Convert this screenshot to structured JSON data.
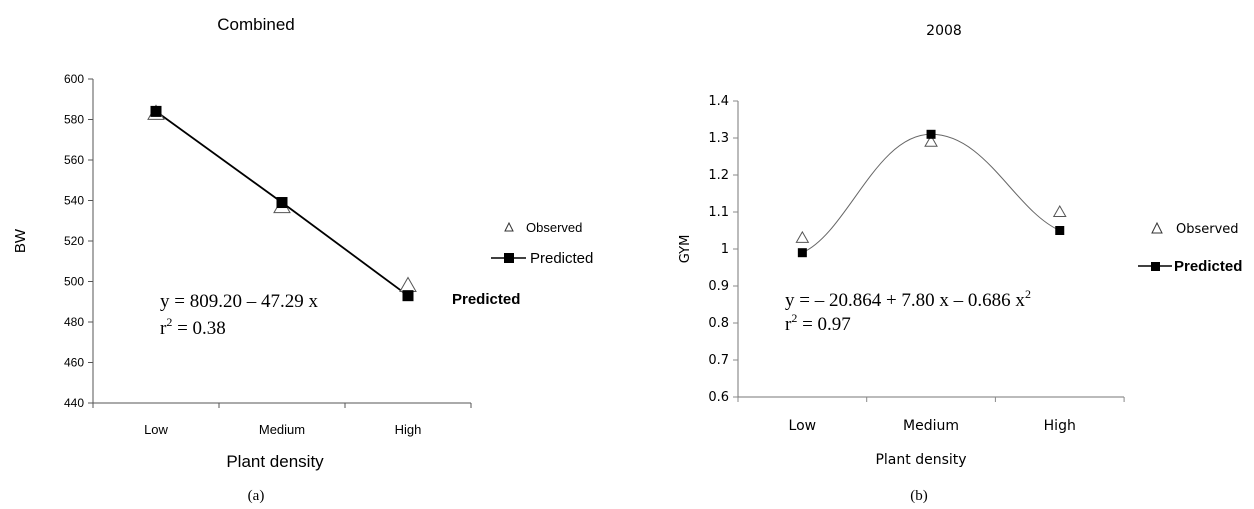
{
  "chart_data": [
    {
      "type": "line",
      "title": "Combined",
      "xlabel": "Plant density",
      "ylabel": "BW",
      "categories": [
        "Low",
        "Medium",
        "High"
      ],
      "ylim": [
        440,
        600
      ],
      "yticks": [
        440,
        460,
        480,
        500,
        520,
        540,
        560,
        580,
        600
      ],
      "series": [
        {
          "name": "Observed",
          "marker": "triangle-open",
          "values": [
            583,
            537,
            498
          ]
        },
        {
          "name": "Predicted",
          "marker": "square-filled",
          "values": [
            584,
            539,
            493
          ]
        }
      ],
      "fit_line": "straight",
      "equation": "y = 809.20 – 47.29 x",
      "r2_label": "r",
      "r2_exp": "2",
      "r2_value": " = 0.38",
      "stray_label": "Predicted",
      "legend_position": "right",
      "caption": "(a)",
      "grid": false
    },
    {
      "type": "line",
      "title": "2008",
      "xlabel": "Plant density",
      "ylabel": "GYM",
      "categories": [
        "Low",
        "Medium",
        "High"
      ],
      "ylim": [
        0.6,
        1.4
      ],
      "yticks": [
        "0.6",
        "0.7",
        "0.8",
        "0.9",
        "1",
        "1.1",
        "1.2",
        "1.3",
        "1.4"
      ],
      "series": [
        {
          "name": "Observed",
          "marker": "triangle-open",
          "values": [
            1.03,
            1.29,
            1.1
          ]
        },
        {
          "name": "Predicted",
          "marker": "square-filled",
          "values": [
            0.99,
            1.31,
            1.05
          ]
        }
      ],
      "fit_line": "smooth",
      "equation": "y = – 20.864 + 7.80 x – 0.686 x",
      "equation_exp": "2",
      "r2_label": "r",
      "r2_exp": "2",
      "r2_value": " = 0.97",
      "legend_position": "right",
      "caption": "(b)",
      "grid": false
    }
  ]
}
